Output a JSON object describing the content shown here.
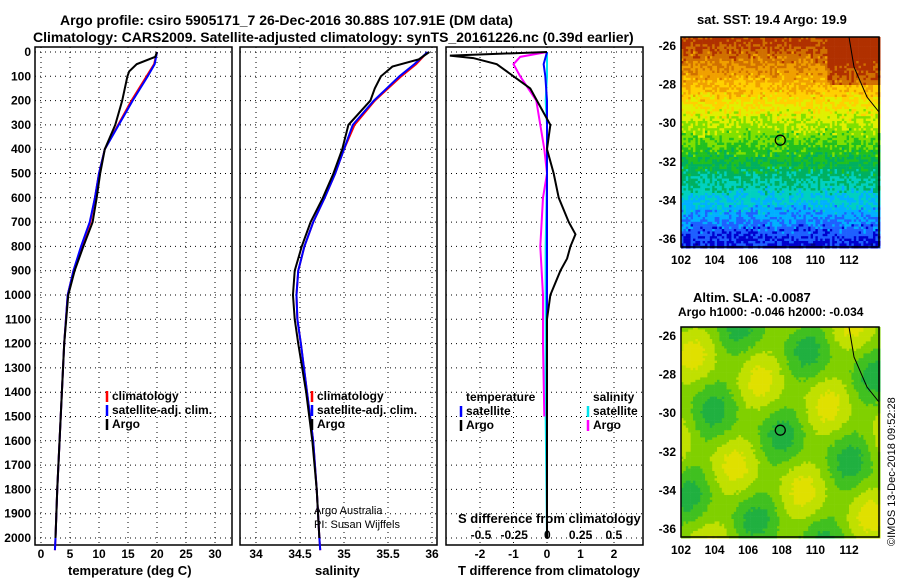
{
  "title_line1": "Argo profile: csiro 5905171_7 26-Dec-2016 30.88S 107.91E (DM data)",
  "title_line2": "Climatology: CARS2009. Satellite-adjusted climatology: synTS_20161226.nc (0.39d earlier)",
  "credit_line1": "Argo Australia",
  "credit_line2": "PI: Susan Wijffels",
  "stamp": "©IMOS 13-Dec-2018 09:52:28",
  "colors": {
    "clim": "#ff0000",
    "sat": "#0000ff",
    "argo": "#000000",
    "sal_sat": "#00e5ee",
    "sal_argo": "#ff00ff"
  },
  "chart_data": [
    {
      "type": "line",
      "xlabel": "temperature (deg C)",
      "ylabel": "",
      "xlim": [
        -1,
        32
      ],
      "ylim": [
        2050,
        -20
      ],
      "xticks": [
        0,
        5,
        10,
        15,
        20,
        25,
        30
      ],
      "yticks": [
        0,
        100,
        200,
        300,
        400,
        500,
        600,
        700,
        800,
        900,
        1000,
        1100,
        1200,
        1300,
        1400,
        1500,
        1600,
        1700,
        1800,
        1900,
        2000
      ],
      "legend": [
        "climatology",
        "satellite-adj. clim.",
        "Argo"
      ],
      "series": [
        {
          "name": "climatology",
          "color": "#ff0000",
          "depth": [
            0,
            50,
            100,
            200,
            300,
            400,
            500,
            600,
            700,
            800,
            900,
            1000,
            1200,
            1400,
            1600,
            1800,
            2000,
            2050
          ],
          "values": [
            20,
            19.5,
            18.2,
            15.6,
            13.3,
            11,
            10,
            9.3,
            8.5,
            7,
            5.6,
            4.6,
            4,
            3.6,
            3.2,
            2.8,
            2.5,
            2.4
          ]
        },
        {
          "name": "satellite-adj. clim.",
          "color": "#0000ff",
          "depth": [
            0,
            50,
            100,
            200,
            300,
            400,
            500,
            600,
            700,
            800,
            900,
            1000,
            1200,
            1400,
            1600,
            1800,
            2000,
            2050
          ],
          "values": [
            20,
            19.6,
            18.4,
            15.8,
            13.4,
            11,
            10,
            9.3,
            8.4,
            6.9,
            5.6,
            4.6,
            4,
            3.6,
            3.2,
            2.8,
            2.5,
            2.4
          ]
        },
        {
          "name": "Argo",
          "color": "#000000",
          "depth": [
            0,
            20,
            50,
            80,
            100,
            200,
            300,
            400,
            500,
            600,
            700,
            800,
            900,
            1000,
            1200,
            1400,
            1600,
            1800,
            2000
          ],
          "values": [
            20,
            19.7,
            16.5,
            15.2,
            14.9,
            14,
            12.8,
            11,
            10.2,
            9.6,
            8.9,
            7.3,
            5.8,
            4.7,
            4,
            3.6,
            3.2,
            2.8,
            2.5
          ]
        }
      ]
    },
    {
      "type": "line",
      "xlabel": "salinity",
      "xlim": [
        33.85,
        36.1
      ],
      "ylim": [
        2050,
        -20
      ],
      "xticks": [
        34,
        34.5,
        35,
        35.5,
        36
      ],
      "legend": [
        "climatology",
        "satellite-adj. clim.",
        "Argo"
      ],
      "series": [
        {
          "name": "climatology",
          "color": "#ff0000",
          "depth": [
            0,
            50,
            100,
            200,
            300,
            400,
            500,
            600,
            700,
            800,
            900,
            1000,
            1100,
            1200,
            1400,
            1600,
            1800,
            2000,
            2050
          ],
          "values": [
            35.95,
            35.82,
            35.65,
            35.35,
            35.12,
            35.0,
            34.9,
            34.78,
            34.65,
            34.55,
            34.48,
            34.46,
            34.47,
            34.51,
            34.58,
            34.65,
            34.69,
            34.72,
            34.73
          ]
        },
        {
          "name": "satellite-adj. clim.",
          "color": "#0000ff",
          "depth": [
            0,
            50,
            100,
            200,
            300,
            400,
            500,
            600,
            700,
            800,
            900,
            1000,
            1100,
            1200,
            1400,
            1600,
            1800,
            2000,
            2050
          ],
          "values": [
            35.95,
            35.8,
            35.63,
            35.34,
            35.1,
            35.0,
            34.9,
            34.78,
            34.65,
            34.55,
            34.48,
            34.46,
            34.47,
            34.51,
            34.58,
            34.65,
            34.69,
            34.72,
            34.73
          ]
        },
        {
          "name": "Argo",
          "color": "#000000",
          "depth": [
            0,
            30,
            60,
            100,
            150,
            200,
            300,
            400,
            500,
            600,
            700,
            800,
            900,
            1000,
            1100,
            1200,
            1400,
            1600,
            1800,
            2000
          ],
          "values": [
            35.97,
            35.85,
            35.55,
            35.42,
            35.35,
            35.3,
            35.05,
            34.98,
            34.88,
            34.76,
            34.62,
            34.52,
            34.44,
            34.42,
            34.44,
            34.48,
            34.57,
            34.64,
            34.69,
            34.72
          ]
        }
      ]
    },
    {
      "type": "line",
      "xlabel": "T difference from climatology",
      "x2label": "S difference from climatology",
      "xlim": [
        -3,
        3
      ],
      "ylim": [
        2050,
        -20
      ],
      "xticks": [
        -2,
        -1,
        0,
        1,
        2
      ],
      "x2ticks": [
        "-0.5",
        "-0.25",
        "0",
        "0.25",
        "0.5"
      ],
      "legend_t_title": "temperature",
      "legend_s_title": "salinity",
      "legend_sat": "satellite",
      "legend_argo": "Argo",
      "series": [
        {
          "name": "T satellite",
          "color": "#0000ff",
          "depth": [
            0,
            50,
            100,
            200,
            400,
            800,
            1200,
            1600,
            2000
          ],
          "values": [
            0,
            -0.1,
            -0.05,
            0,
            0,
            0,
            0,
            0,
            0
          ]
        },
        {
          "name": "T Argo",
          "color": "#000000",
          "depth": [
            0,
            15,
            25,
            50,
            100,
            150,
            200,
            300,
            400,
            500,
            600,
            700,
            750,
            800,
            850,
            900,
            1000,
            1100,
            1500,
            2000
          ],
          "values": [
            0,
            -2.9,
            -2.2,
            -1.5,
            -1.0,
            -0.5,
            -0.3,
            0.1,
            0,
            0.2,
            0.35,
            0.65,
            0.85,
            0.7,
            0.6,
            0.4,
            0.1,
            0,
            0,
            0
          ]
        },
        {
          "name": "S satellite",
          "color": "#00e5ee",
          "depth": [
            0,
            100,
            200,
            300,
            500,
            800,
            1000,
            1500,
            2000
          ],
          "values": [
            0,
            0.0,
            -0.01,
            0,
            0,
            -0.01,
            -0.01,
            -0.01,
            0
          ]
        },
        {
          "name": "S Argo",
          "color": "#ff00ff",
          "depth": [
            0,
            20,
            50,
            100,
            200,
            300,
            400,
            500,
            600,
            800,
            900,
            1000,
            1200,
            1500
          ],
          "values": [
            0,
            -0.2,
            -0.25,
            -0.2,
            -0.08,
            -0.05,
            -0.02,
            0,
            -0.03,
            -0.05,
            -0.04,
            -0.03,
            -0.03,
            -0.02
          ]
        }
      ]
    },
    {
      "type": "heatmap",
      "title": "sat. SST: 19.4 Argo: 19.9",
      "xticks": [
        102,
        104,
        106,
        108,
        110,
        112
      ],
      "yticks": [
        -26,
        -28,
        -30,
        -32,
        -34,
        -36
      ],
      "marker": {
        "lon": 107.91,
        "lat": -30.88
      }
    },
    {
      "type": "heatmap",
      "title": "Altim. SLA: -0.0087",
      "subtitle": "Argo h1000: -0.046 h2000: -0.034",
      "xticks": [
        102,
        104,
        106,
        108,
        110,
        112
      ],
      "yticks": [
        -26,
        -28,
        -30,
        -32,
        -34,
        -36
      ],
      "marker": {
        "lon": 107.91,
        "lat": -30.88
      }
    }
  ]
}
